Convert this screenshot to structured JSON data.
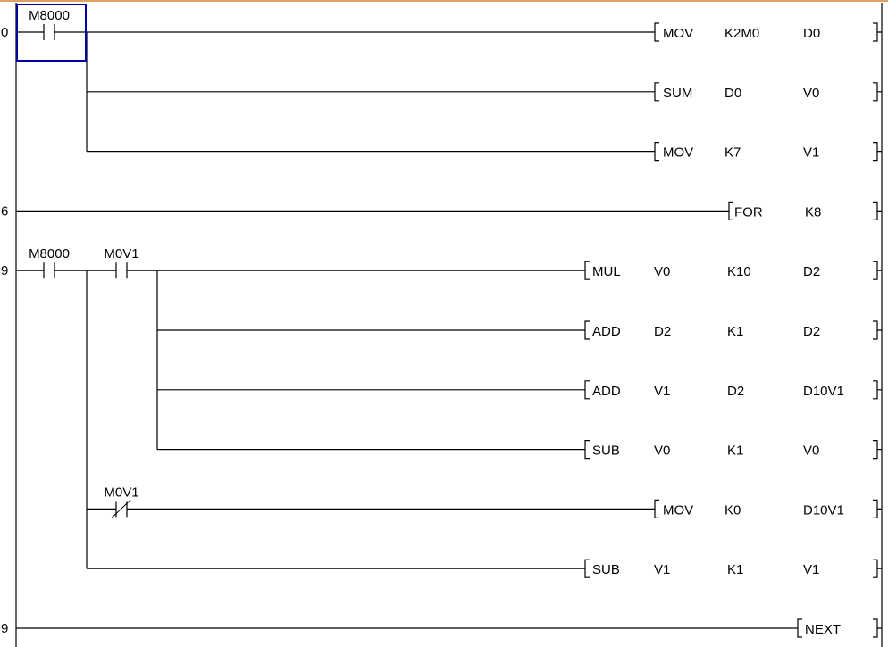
{
  "colors": {
    "wire": "#000000",
    "selection": "#0000a0",
    "top_border": "#e0a060"
  },
  "steps": [
    {
      "row": 0,
      "label": "0"
    },
    {
      "row": 3,
      "label": "6"
    },
    {
      "row": 4,
      "label": "9"
    },
    {
      "row": 10,
      "label": "9"
    }
  ],
  "contacts": [
    {
      "row": 0,
      "slot": 0,
      "label": "M8000",
      "type": "normally-open"
    },
    {
      "row": 4,
      "slot": 0,
      "label": "M8000",
      "type": "normally-open"
    },
    {
      "row": 4,
      "slot": 1,
      "label": "M0V1",
      "type": "normally-open"
    },
    {
      "row": 8,
      "slot": 1,
      "label": "M0V1",
      "type": "normally-closed"
    }
  ],
  "instructions": [
    {
      "row": 0,
      "mnemonic": "MOV",
      "operands": [
        "K2M0",
        "D0"
      ]
    },
    {
      "row": 1,
      "mnemonic": "SUM",
      "operands": [
        "D0",
        "V0"
      ]
    },
    {
      "row": 2,
      "mnemonic": "MOV",
      "operands": [
        "K7",
        "V1"
      ]
    },
    {
      "row": 3,
      "mnemonic": "FOR",
      "operands": [
        "K8"
      ]
    },
    {
      "row": 4,
      "mnemonic": "MUL",
      "operands": [
        "V0",
        "K10",
        "D2"
      ]
    },
    {
      "row": 5,
      "mnemonic": "ADD",
      "operands": [
        "D2",
        "K1",
        "D2"
      ]
    },
    {
      "row": 6,
      "mnemonic": "ADD",
      "operands": [
        "V1",
        "D2",
        "D10V1"
      ]
    },
    {
      "row": 7,
      "mnemonic": "SUB",
      "operands": [
        "V0",
        "K1",
        "V0"
      ]
    },
    {
      "row": 8,
      "mnemonic": "MOV",
      "operands": [
        "K0",
        "D10V1"
      ]
    },
    {
      "row": 9,
      "mnemonic": "SUB",
      "operands": [
        "V1",
        "K1",
        "V1"
      ]
    },
    {
      "row": 10,
      "mnemonic": "NEXT",
      "operands": []
    }
  ],
  "selected_cell": {
    "row": 0,
    "slot": 0
  }
}
